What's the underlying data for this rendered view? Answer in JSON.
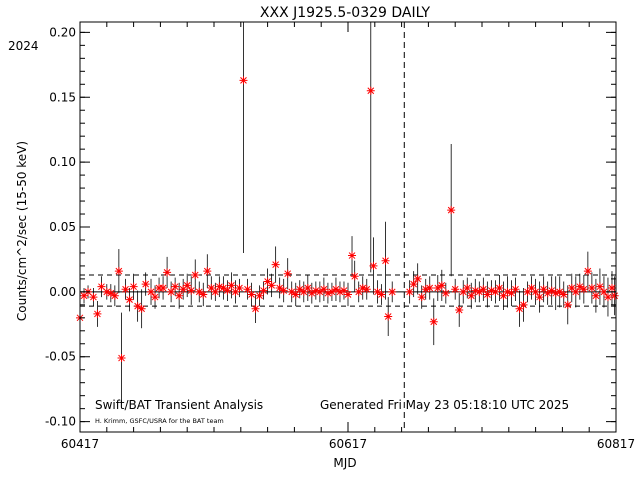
{
  "chart_data": {
    "type": "scatter",
    "title": "XXX J1925.5-0329 DAILY",
    "year_label": "2024",
    "xlabel": "MJD",
    "ylabel": "Counts/cm^2/sec (15-50 keV)",
    "xlim": [
      60417,
      60817
    ],
    "ylim": [
      -0.108,
      0.208
    ],
    "x_ticks": [
      60417,
      60617,
      60817
    ],
    "y_ticks": [
      -0.1,
      -0.05,
      0.0,
      0.05,
      0.1,
      0.15,
      0.2
    ],
    "y_tick_labels": [
      "-0.10",
      "-0.05",
      "0.00",
      "0.05",
      "0.10",
      "0.15",
      "0.20"
    ],
    "reference_lines": {
      "mean": 0.0,
      "upper_dashed": 0.013,
      "lower_dashed": -0.011,
      "vertical_dashed_x": 60659
    },
    "marker_color": "#ff0000",
    "errorbar_color": "#000000",
    "points": [
      {
        "x": 60417,
        "y": -0.02,
        "err": 0.01
      },
      {
        "x": 60420,
        "y": -0.003,
        "err": 0.006
      },
      {
        "x": 60423,
        "y": 0.0,
        "err": 0.005
      },
      {
        "x": 60427,
        "y": -0.004,
        "err": 0.007
      },
      {
        "x": 60430,
        "y": -0.017,
        "err": 0.01
      },
      {
        "x": 60433,
        "y": 0.004,
        "err": 0.008
      },
      {
        "x": 60437,
        "y": 0.0,
        "err": 0.006
      },
      {
        "x": 60440,
        "y": -0.001,
        "err": 0.007
      },
      {
        "x": 60443,
        "y": -0.003,
        "err": 0.008
      },
      {
        "x": 60446,
        "y": 0.016,
        "err": 0.017
      },
      {
        "x": 60448,
        "y": -0.051,
        "err": 0.035
      },
      {
        "x": 60451,
        "y": 0.002,
        "err": 0.008
      },
      {
        "x": 60454,
        "y": -0.006,
        "err": 0.009
      },
      {
        "x": 60457,
        "y": 0.004,
        "err": 0.01
      },
      {
        "x": 60460,
        "y": -0.011,
        "err": 0.012
      },
      {
        "x": 60463,
        "y": -0.013,
        "err": 0.015
      },
      {
        "x": 60466,
        "y": 0.006,
        "err": 0.009
      },
      {
        "x": 60470,
        "y": 0.0,
        "err": 0.01
      },
      {
        "x": 60473,
        "y": -0.004,
        "err": 0.009
      },
      {
        "x": 60476,
        "y": 0.003,
        "err": 0.008
      },
      {
        "x": 60479,
        "y": 0.003,
        "err": 0.009
      },
      {
        "x": 60482,
        "y": 0.015,
        "err": 0.012
      },
      {
        "x": 60485,
        "y": 0.0,
        "err": 0.008
      },
      {
        "x": 60488,
        "y": 0.004,
        "err": 0.007
      },
      {
        "x": 60491,
        "y": -0.003,
        "err": 0.01
      },
      {
        "x": 60494,
        "y": 0.002,
        "err": 0.008
      },
      {
        "x": 60497,
        "y": 0.005,
        "err": 0.009
      },
      {
        "x": 60500,
        "y": 0.001,
        "err": 0.011
      },
      {
        "x": 60503,
        "y": 0.013,
        "err": 0.012
      },
      {
        "x": 60506,
        "y": 0.0,
        "err": 0.008
      },
      {
        "x": 60509,
        "y": -0.002,
        "err": 0.009
      },
      {
        "x": 60512,
        "y": 0.016,
        "err": 0.013
      },
      {
        "x": 60515,
        "y": 0.003,
        "err": 0.009
      },
      {
        "x": 60518,
        "y": 0.0,
        "err": 0.007
      },
      {
        "x": 60521,
        "y": 0.004,
        "err": 0.008
      },
      {
        "x": 60524,
        "y": 0.003,
        "err": 0.009
      },
      {
        "x": 60527,
        "y": 0.001,
        "err": 0.008
      },
      {
        "x": 60530,
        "y": 0.005,
        "err": 0.01
      },
      {
        "x": 60533,
        "y": 0.0,
        "err": 0.009
      },
      {
        "x": 60536,
        "y": 0.003,
        "err": 0.007
      },
      {
        "x": 60539,
        "y": 0.163,
        "err": 0.133
      },
      {
        "x": 60542,
        "y": 0.002,
        "err": 0.008
      },
      {
        "x": 60545,
        "y": -0.002,
        "err": 0.009
      },
      {
        "x": 60548,
        "y": -0.013,
        "err": 0.011
      },
      {
        "x": 60551,
        "y": -0.003,
        "err": 0.008
      },
      {
        "x": 60554,
        "y": 0.001,
        "err": 0.007
      },
      {
        "x": 60557,
        "y": 0.008,
        "err": 0.01
      },
      {
        "x": 60560,
        "y": 0.005,
        "err": 0.009
      },
      {
        "x": 60563,
        "y": 0.021,
        "err": 0.014
      },
      {
        "x": 60566,
        "y": 0.003,
        "err": 0.008
      },
      {
        "x": 60569,
        "y": 0.001,
        "err": 0.009
      },
      {
        "x": 60572,
        "y": 0.014,
        "err": 0.012
      },
      {
        "x": 60575,
        "y": 0.0,
        "err": 0.008
      },
      {
        "x": 60578,
        "y": -0.002,
        "err": 0.009
      },
      {
        "x": 60581,
        "y": 0.002,
        "err": 0.007
      },
      {
        "x": 60584,
        "y": 0.0,
        "err": 0.008
      },
      {
        "x": 60587,
        "y": 0.003,
        "err": 0.01
      },
      {
        "x": 60590,
        "y": -0.001,
        "err": 0.008
      },
      {
        "x": 60593,
        "y": 0.001,
        "err": 0.007
      },
      {
        "x": 60596,
        "y": 0.0,
        "err": 0.008
      },
      {
        "x": 60599,
        "y": 0.002,
        "err": 0.009
      },
      {
        "x": 60602,
        "y": -0.001,
        "err": 0.008
      },
      {
        "x": 60605,
        "y": 0.0,
        "err": 0.007
      },
      {
        "x": 60608,
        "y": 0.002,
        "err": 0.009
      },
      {
        "x": 60611,
        "y": 0.0,
        "err": 0.008
      },
      {
        "x": 60614,
        "y": 0.001,
        "err": 0.007
      },
      {
        "x": 60617,
        "y": -0.002,
        "err": 0.009
      },
      {
        "x": 60620,
        "y": 0.028,
        "err": 0.015
      },
      {
        "x": 60622,
        "y": 0.012,
        "err": 0.012
      },
      {
        "x": 60625,
        "y": 0.0,
        "err": 0.008
      },
      {
        "x": 60628,
        "y": 0.003,
        "err": 0.009
      },
      {
        "x": 60631,
        "y": 0.002,
        "err": 0.008
      },
      {
        "x": 60634,
        "y": 0.155,
        "err": 0.14
      },
      {
        "x": 60636,
        "y": 0.02,
        "err": 0.022
      },
      {
        "x": 60639,
        "y": 0.0,
        "err": 0.009
      },
      {
        "x": 60642,
        "y": -0.002,
        "err": 0.008
      },
      {
        "x": 60645,
        "y": 0.024,
        "err": 0.03
      },
      {
        "x": 60647,
        "y": -0.019,
        "err": 0.015
      },
      {
        "x": 60650,
        "y": 0.0,
        "err": 0.008
      },
      {
        "x": 60663,
        "y": 0.0,
        "err": 0.009
      },
      {
        "x": 60666,
        "y": 0.006,
        "err": 0.01
      },
      {
        "x": 60669,
        "y": 0.01,
        "err": 0.012
      },
      {
        "x": 60672,
        "y": -0.004,
        "err": 0.009
      },
      {
        "x": 60675,
        "y": 0.002,
        "err": 0.008
      },
      {
        "x": 60678,
        "y": 0.003,
        "err": 0.009
      },
      {
        "x": 60681,
        "y": -0.023,
        "err": 0.018
      },
      {
        "x": 60684,
        "y": 0.003,
        "err": 0.01
      },
      {
        "x": 60687,
        "y": 0.005,
        "err": 0.012
      },
      {
        "x": 60690,
        "y": -0.001,
        "err": 0.008
      },
      {
        "x": 60694,
        "y": 0.063,
        "err": 0.051
      },
      {
        "x": 60697,
        "y": 0.002,
        "err": 0.008
      },
      {
        "x": 60700,
        "y": -0.014,
        "err": 0.013
      },
      {
        "x": 60703,
        "y": 0.0,
        "err": 0.009
      },
      {
        "x": 60706,
        "y": 0.003,
        "err": 0.008
      },
      {
        "x": 60709,
        "y": -0.003,
        "err": 0.01
      },
      {
        "x": 60712,
        "y": 0.001,
        "err": 0.009
      },
      {
        "x": 60715,
        "y": 0.0,
        "err": 0.008
      },
      {
        "x": 60718,
        "y": 0.002,
        "err": 0.009
      },
      {
        "x": 60721,
        "y": -0.002,
        "err": 0.01
      },
      {
        "x": 60724,
        "y": 0.001,
        "err": 0.008
      },
      {
        "x": 60727,
        "y": 0.0,
        "err": 0.009
      },
      {
        "x": 60730,
        "y": 0.003,
        "err": 0.01
      },
      {
        "x": 60733,
        "y": -0.003,
        "err": 0.011
      },
      {
        "x": 60736,
        "y": 0.0,
        "err": 0.012
      },
      {
        "x": 60739,
        "y": -0.001,
        "err": 0.01
      },
      {
        "x": 60742,
        "y": 0.002,
        "err": 0.009
      },
      {
        "x": 60745,
        "y": -0.013,
        "err": 0.014
      },
      {
        "x": 60748,
        "y": -0.01,
        "err": 0.013
      },
      {
        "x": 60751,
        "y": 0.0,
        "err": 0.008
      },
      {
        "x": 60754,
        "y": 0.003,
        "err": 0.009
      },
      {
        "x": 60757,
        "y": 0.0,
        "err": 0.01
      },
      {
        "x": 60760,
        "y": -0.004,
        "err": 0.012
      },
      {
        "x": 60763,
        "y": 0.002,
        "err": 0.01
      },
      {
        "x": 60766,
        "y": -0.001,
        "err": 0.009
      },
      {
        "x": 60769,
        "y": 0.001,
        "err": 0.011
      },
      {
        "x": 60772,
        "y": -0.001,
        "err": 0.013
      },
      {
        "x": 60775,
        "y": 0.0,
        "err": 0.012
      },
      {
        "x": 60778,
        "y": -0.002,
        "err": 0.01
      },
      {
        "x": 60781,
        "y": -0.01,
        "err": 0.015
      },
      {
        "x": 60784,
        "y": 0.003,
        "err": 0.011
      },
      {
        "x": 60787,
        "y": 0.0,
        "err": 0.012
      },
      {
        "x": 60790,
        "y": 0.004,
        "err": 0.01
      },
      {
        "x": 60793,
        "y": 0.002,
        "err": 0.011
      },
      {
        "x": 60796,
        "y": 0.016,
        "err": 0.015
      },
      {
        "x": 60799,
        "y": 0.003,
        "err": 0.012
      },
      {
        "x": 60802,
        "y": -0.003,
        "err": 0.013
      },
      {
        "x": 60805,
        "y": 0.004,
        "err": 0.014
      },
      {
        "x": 60808,
        "y": 0.0,
        "err": 0.012
      },
      {
        "x": 60811,
        "y": -0.004,
        "err": 0.015
      },
      {
        "x": 60814,
        "y": 0.003,
        "err": 0.013
      },
      {
        "x": 60816,
        "y": -0.003,
        "err": 0.015
      }
    ]
  },
  "footer": {
    "left_title": "Swift/BAT Transient Analysis",
    "left_credit": "H. Krimm, GSFC/USRA for the BAT team",
    "generated": "Generated Fri May 23 05:18:10 UTC 2025"
  }
}
